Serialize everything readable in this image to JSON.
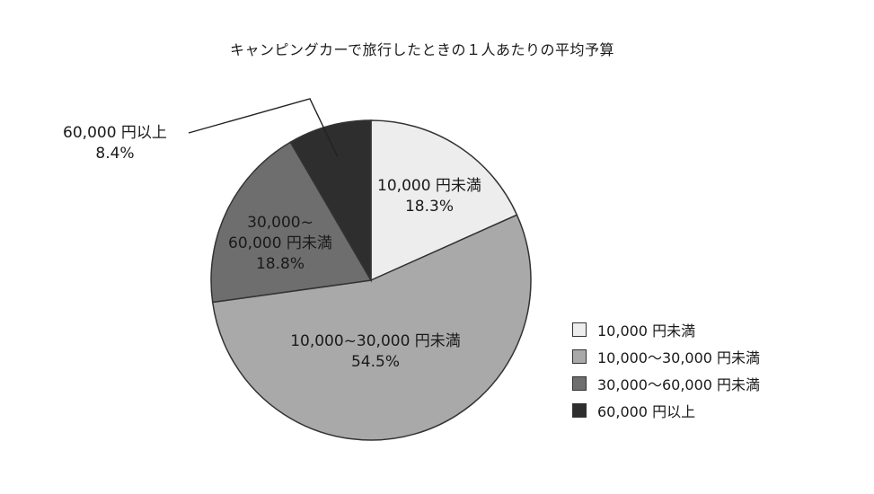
{
  "chart_data": {
    "type": "pie",
    "title": "キャンピングカーで旅行したときの１人あたりの平均予算",
    "slices": [
      {
        "label": "10,000 円未満",
        "value": 18.3,
        "value_text": "18.3%",
        "color": "#ededed"
      },
      {
        "label": "10,000〜30,000 円未満",
        "value": 54.5,
        "value_text": "54.5%",
        "color": "#a9a9a9"
      },
      {
        "label": "30,000〜60,000 円未満",
        "value": 18.8,
        "value_text": "18.8%",
        "color": "#6e6e6e"
      },
      {
        "label": "60,000 円以上",
        "value": 8.4,
        "value_text": "8.4%",
        "color": "#2e2e2e"
      }
    ],
    "slice_labels": [
      [
        "10,000 円未満",
        "18.3%"
      ],
      [
        "10,000~30,000 円未満",
        "54.5%"
      ],
      [
        "30,000~",
        "60,000 円未満",
        "18.8%"
      ],
      [
        "60,000 円以上",
        "8.4%"
      ]
    ],
    "legend": [
      "10,000 円未満",
      "10,000〜30,000 円未満",
      "30,000〜60,000 円未満",
      "60,000 円以上"
    ],
    "legend_position": "right"
  }
}
